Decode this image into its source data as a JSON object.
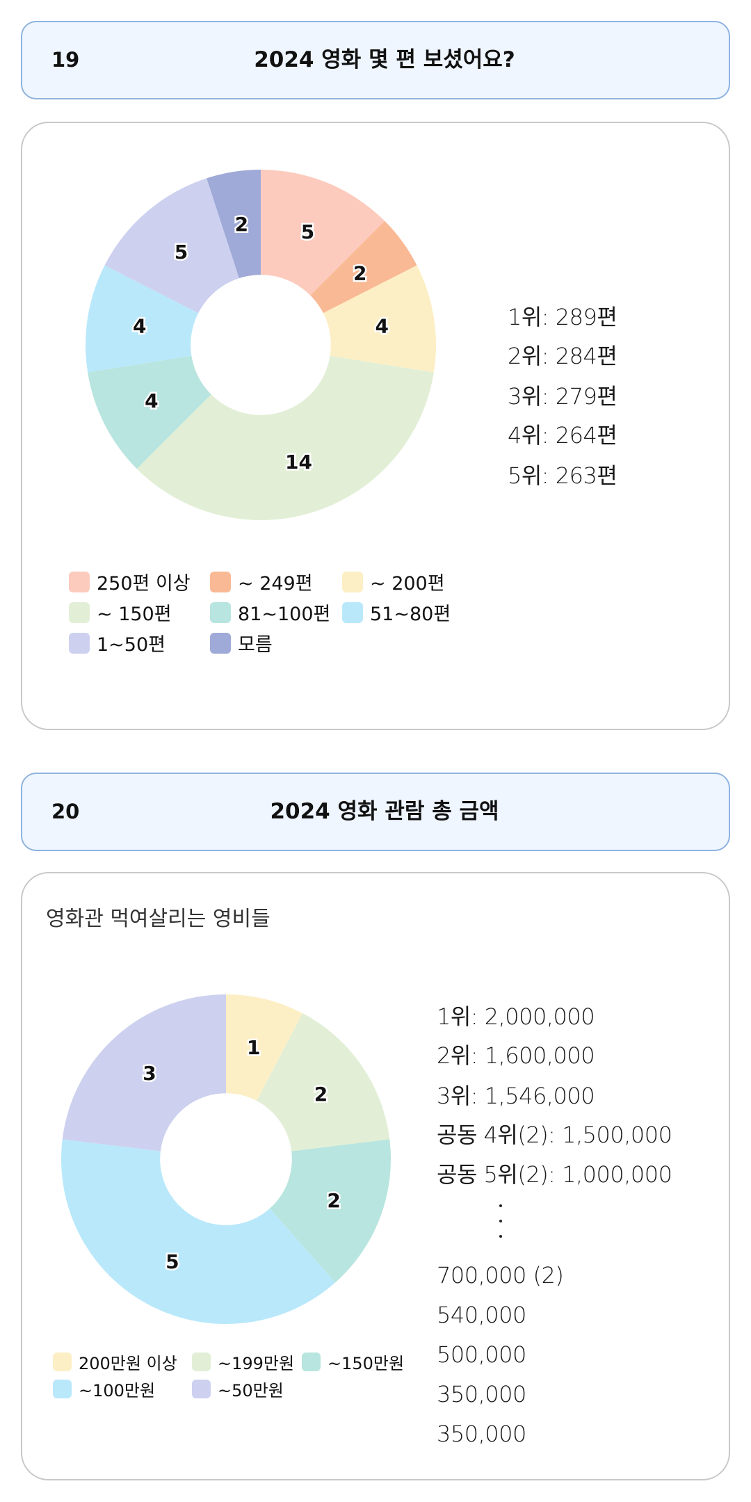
{
  "sections": [
    {
      "number": "19",
      "title": "2024 영화 몇 편 보셨어요?",
      "rankings": [
        "1위: 289편",
        "2위: 284편",
        "3위: 279편",
        "4위: 264편",
        "5위: 263편"
      ]
    },
    {
      "number": "20",
      "title": "2024 영화 관람 총 금액",
      "subtitle": "영화관 먹여살리는 영비들",
      "rankings_top": [
        "1위: 2,000,000",
        "2위: 1,600,000",
        "3위: 1,546,000",
        "공동 4위(2): 1,500,000",
        "공동 5위(2): 1,000,000"
      ],
      "rankings_bottom": [
        "700,000 (2)",
        "540,000",
        "500,000",
        "350,000",
        "350,000"
      ]
    }
  ],
  "chart_data": [
    {
      "type": "pie",
      "variant": "donut",
      "title": "2024 영화 몇 편 보셨어요?",
      "categories": [
        "250편 이상",
        "~ 249편",
        "~ 200편",
        "~ 150편",
        "81~100편",
        "51~80편",
        "1~50편",
        "모름"
      ],
      "values": [
        5,
        2,
        4,
        14,
        4,
        4,
        5,
        2
      ],
      "colors": [
        "#fccbbd",
        "#f9b994",
        "#fdefc5",
        "#e2efd6",
        "#b8e5df",
        "#b9e8fb",
        "#cdd1ef",
        "#9faad8"
      ],
      "legend": "bottom"
    },
    {
      "type": "pie",
      "variant": "donut",
      "title": "2024 영화 관람 총 금액",
      "categories": [
        "200만원 이상",
        "~199만원",
        "~150만원",
        "~100만원",
        "~50만원"
      ],
      "values": [
        1,
        2,
        2,
        5,
        3
      ],
      "colors": [
        "#fdefc5",
        "#e2efd6",
        "#b8e5df",
        "#b9e8fb",
        "#cdd1ef"
      ],
      "legend": "bottom"
    }
  ]
}
